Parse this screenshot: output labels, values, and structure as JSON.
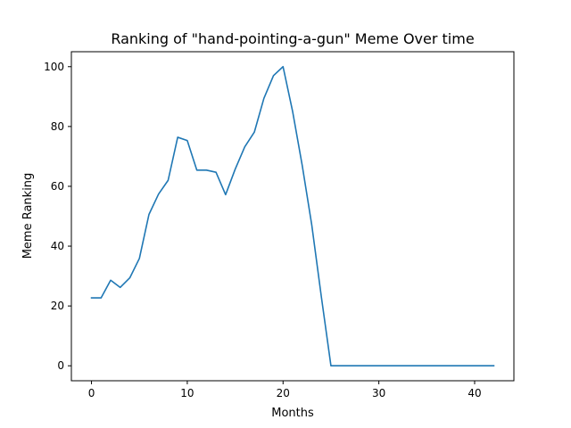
{
  "chart_data": {
    "type": "line",
    "title": "Ranking of \"hand-pointing-a-gun\" Meme Over time",
    "xlabel": "Months",
    "ylabel": "Meme Ranking",
    "xlim": [
      -2.1,
      44.1
    ],
    "ylim": [
      -5,
      105
    ],
    "xticks": [
      0,
      10,
      20,
      30,
      40
    ],
    "yticks": [
      0,
      20,
      40,
      60,
      80,
      100
    ],
    "grid": false,
    "legend": "none",
    "line_color": "#1f77b4",
    "series": [
      {
        "x": [
          0,
          1,
          2,
          3,
          4,
          5,
          6,
          7,
          8,
          9,
          10,
          11,
          12,
          13,
          14,
          15,
          16,
          17,
          18,
          19,
          20,
          21,
          22,
          23,
          24,
          25,
          26,
          27,
          28,
          29,
          30,
          31,
          32,
          33,
          34,
          35,
          36,
          37,
          38,
          39,
          40,
          41,
          42
        ],
        "values": [
          22.7,
          22.7,
          28.6,
          26.2,
          29.4,
          35.9,
          50.6,
          57.4,
          62.0,
          76.4,
          75.3,
          65.4,
          65.4,
          64.7,
          57.2,
          65.7,
          73.2,
          78.1,
          89.4,
          97.0,
          100.0,
          85.0,
          67.0,
          47.0,
          23.0,
          0,
          0,
          0,
          0,
          0,
          0,
          0,
          0,
          0,
          0,
          0,
          0,
          0,
          0,
          0,
          0,
          0,
          0
        ]
      }
    ]
  }
}
